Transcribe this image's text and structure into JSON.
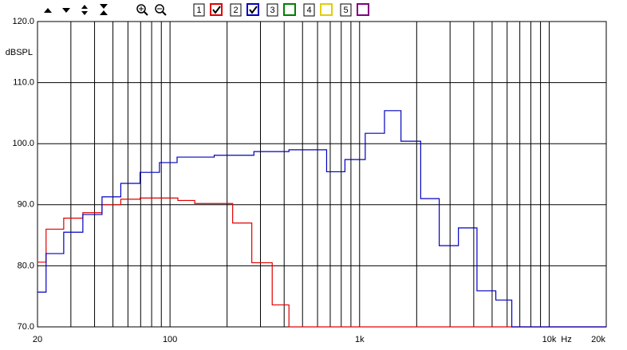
{
  "toolbar": {
    "channels": [
      {
        "label": "1",
        "color": "#e00000",
        "checked": true
      },
      {
        "label": "2",
        "color": "#0000c0",
        "checked": true
      },
      {
        "label": "3",
        "color": "#008000",
        "checked": false
      },
      {
        "label": "4",
        "color": "#e0d000",
        "checked": false
      },
      {
        "label": "5",
        "color": "#800080",
        "checked": false
      }
    ]
  },
  "chart_data": {
    "type": "line",
    "step": true,
    "log_x": true,
    "grid": true,
    "ylabel": "dBSPL",
    "xlabel": "Hz",
    "xlim": [
      20,
      20000
    ],
    "ylim": [
      70,
      120
    ],
    "xticks": [
      20,
      100,
      {
        "value": 1000,
        "label": "1k"
      },
      {
        "value": 10000,
        "label": "10k"
      },
      {
        "value": 20000,
        "label": "20k"
      }
    ],
    "xgrid_minor": [
      30,
      40,
      50,
      60,
      70,
      80,
      90,
      200,
      300,
      400,
      500,
      600,
      700,
      800,
      900,
      2000,
      3000,
      4000,
      5000,
      6000,
      7000,
      8000,
      9000
    ],
    "yticks": [
      {
        "value": 70,
        "label": "70.0"
      },
      {
        "value": 80,
        "label": "80.0"
      },
      {
        "value": 90,
        "label": "90.0"
      },
      {
        "value": 100,
        "label": "100.0"
      },
      {
        "value": 110,
        "label": "110.0"
      },
      {
        "value": 120,
        "label": "120.0"
      }
    ],
    "series": [
      {
        "color": "#e00000",
        "x": [
          20,
          22.2,
          27.5,
          34.7,
          43.8,
          55,
          69.5,
          88,
          110,
          135,
          214,
          270,
          346,
          424,
          20000
        ],
        "values": [
          80.6,
          86,
          87.8,
          88.7,
          90,
          90.9,
          91.1,
          91.1,
          90.7,
          90.2,
          87,
          80.5,
          73.6,
          70,
          70
        ]
      },
      {
        "color": "#0000c0",
        "x": [
          20,
          22.2,
          27.5,
          34.7,
          43.8,
          55,
          69.5,
          88,
          109,
          171,
          277,
          424,
          670,
          837,
          1071,
          1353,
          1653,
          2100,
          2630,
          3320,
          4160,
          5230,
          6350,
          20000
        ],
        "values": [
          75.7,
          82,
          85.5,
          88.4,
          91.3,
          93.5,
          95.3,
          96.9,
          97.8,
          98.1,
          98.7,
          99,
          95.4,
          97.4,
          101.7,
          105.4,
          100.4,
          91,
          83.3,
          86.2,
          75.9,
          74.4,
          70,
          70
        ]
      }
    ]
  }
}
